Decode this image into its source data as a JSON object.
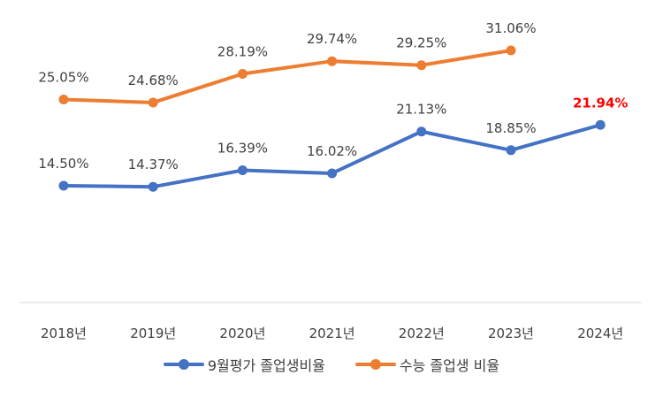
{
  "chart_data": {
    "type": "line",
    "categories": [
      "2018년",
      "2019년",
      "2020년",
      "2021년",
      "2022년",
      "2023년",
      "2024년"
    ],
    "series": [
      {
        "name": "9월평가 졸업생비율",
        "color": "#4472C4",
        "values": [
          14.5,
          14.37,
          16.39,
          16.02,
          21.13,
          18.85,
          21.94
        ],
        "labels": [
          "14.50%",
          "14.37%",
          "16.39%",
          "16.02%",
          "21.13%",
          "18.85%",
          "21.94%"
        ],
        "highlight_label_index": 6,
        "highlight_color": "#FF0000"
      },
      {
        "name": "수능 졸업생 비율",
        "color": "#ED7D31",
        "values": [
          25.05,
          24.68,
          28.19,
          29.74,
          29.25,
          31.06,
          null
        ],
        "labels": [
          "25.05%",
          "24.68%",
          "28.19%",
          "29.74%",
          "29.25%",
          "31.06%",
          null
        ]
      }
    ],
    "title": "",
    "xlabel": "",
    "ylabel": "",
    "grid": false,
    "legend_position": "bottom"
  }
}
